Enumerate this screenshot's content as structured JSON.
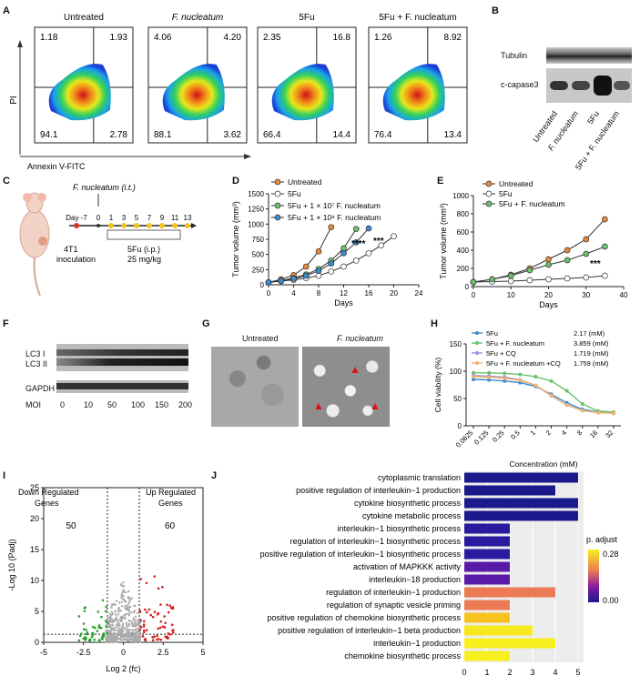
{
  "panels": {
    "A": "A",
    "B": "B",
    "C": "C",
    "D": "D",
    "E": "E",
    "F": "F",
    "G": "G",
    "H": "H",
    "I": "I",
    "J": "J"
  },
  "flow": {
    "ylabel": "PI",
    "xlabel": "Annexin V-FITC",
    "plots": [
      {
        "title": "Untreated",
        "q": [
          "1.18",
          "1.93",
          "94.1",
          "2.78"
        ]
      },
      {
        "title": "F. nucleatum",
        "q": [
          "4.06",
          "4.20",
          "88.1",
          "3.62"
        ]
      },
      {
        "title": "5Fu",
        "q": [
          "2.35",
          "16.8",
          "66.4",
          "14.4"
        ]
      },
      {
        "title": "5Fu + F. nucleatum",
        "q": [
          "1.26",
          "8.92",
          "76.4",
          "13.4"
        ]
      }
    ]
  },
  "blotB": {
    "rows": [
      "Tubulin",
      "c-capase3"
    ],
    "lanes": [
      "Untreated",
      "F. nucleatum",
      "5Fu",
      "5Fu + F. nucleatum"
    ]
  },
  "schemeC": {
    "injection": "F. nucleatum (i.t.)",
    "ticks": [
      "Day -7",
      "0",
      "1",
      "3",
      "5",
      "7",
      "9",
      "11",
      "13"
    ],
    "inoc1": "4T1",
    "inoc2": "inoculation",
    "drug1": "5Fu (i.p.)",
    "drug2": "25 mg/kg"
  },
  "blotF": {
    "rows": [
      "LC3 I",
      "LC3 II",
      "GAPDH"
    ],
    "mlabel": "MOI",
    "moi": [
      "0",
      "10",
      "50",
      "100",
      "150",
      "200"
    ]
  },
  "emG": {
    "labels": [
      "Untreated",
      "F. nucleatum"
    ]
  },
  "chart_data": [
    {
      "panel": "D",
      "type": "line",
      "xlabel": "Days",
      "ylabel": "Tumor volume (mm³)",
      "xlim": [
        0,
        24
      ],
      "ylim": [
        0,
        1500
      ],
      "xticks": [
        "0",
        "4",
        "8",
        "12",
        "16",
        "20",
        "24"
      ],
      "yticks": [
        "0",
        "250",
        "500",
        "750",
        "1000",
        "1250",
        "1500"
      ],
      "annotations": [
        "****",
        "***"
      ],
      "series": [
        {
          "name": "Untreated",
          "color": "#e8893a",
          "x": [
            0,
            2,
            4,
            6,
            8,
            10
          ],
          "y": [
            40,
            90,
            160,
            300,
            550,
            950
          ]
        },
        {
          "name": "5Fu",
          "color": "#ffffff",
          "x": [
            0,
            2,
            4,
            6,
            8,
            10,
            12,
            14,
            16,
            18,
            20
          ],
          "y": [
            40,
            60,
            80,
            110,
            150,
            220,
            300,
            400,
            520,
            650,
            800
          ]
        },
        {
          "name": "5Fu + 1 × 10⁷ F. nucleatum",
          "color": "#6cc16c",
          "x": [
            0,
            2,
            4,
            6,
            8,
            10,
            12,
            14
          ],
          "y": [
            40,
            70,
            110,
            170,
            260,
            400,
            600,
            920
          ]
        },
        {
          "name": "5Fu + 1 × 10⁸ F. nucleatum",
          "color": "#3a8bd0",
          "x": [
            0,
            2,
            4,
            6,
            8,
            10,
            12,
            14,
            16
          ],
          "y": [
            40,
            65,
            100,
            150,
            230,
            350,
            520,
            700,
            930
          ]
        }
      ]
    },
    {
      "panel": "E",
      "type": "line",
      "xlabel": "Days",
      "ylabel": "Tumor volume (mm³)",
      "xlim": [
        0,
        40
      ],
      "ylim": [
        0,
        1000
      ],
      "xticks": [
        "0",
        "10",
        "20",
        "30",
        "40"
      ],
      "yticks": [
        "0",
        "200",
        "400",
        "600",
        "800",
        "1000"
      ],
      "annotations": [
        "***"
      ],
      "series": [
        {
          "name": "Untreated",
          "color": "#e8893a",
          "x": [
            0,
            5,
            10,
            15,
            20,
            25,
            30,
            35
          ],
          "y": [
            50,
            80,
            130,
            200,
            300,
            400,
            520,
            740
          ]
        },
        {
          "name": "5Fu",
          "color": "#ffffff",
          "x": [
            0,
            5,
            10,
            15,
            20,
            25,
            30,
            35
          ],
          "y": [
            50,
            55,
            60,
            70,
            80,
            90,
            100,
            120
          ]
        },
        {
          "name": "5Fu + F. nucleatum",
          "color": "#6cc16c",
          "x": [
            0,
            5,
            10,
            15,
            20,
            25,
            30,
            35
          ],
          "y": [
            50,
            80,
            120,
            180,
            240,
            290,
            360,
            440
          ]
        }
      ]
    },
    {
      "panel": "H",
      "type": "line",
      "xlabel": "Concentration (mM)",
      "ylabel": "Cell viability (%)",
      "ylim": [
        0,
        150
      ],
      "xticks": [
        "0.0625",
        "0.125",
        "0.25",
        "0.5",
        "1",
        "2",
        "4",
        "8",
        "16",
        "32"
      ],
      "yticks": [
        "0",
        "50",
        "100",
        "150"
      ],
      "series": [
        {
          "name": "5Fu",
          "ic50": "2.17 (mM)",
          "color": "#3a8bd0",
          "y": [
            85,
            84,
            82,
            79,
            72,
            58,
            42,
            30,
            25,
            24
          ]
        },
        {
          "name": "5Fu + F. nucleatum",
          "ic50": "3.859 (mM)",
          "color": "#6cc16c",
          "y": [
            97,
            97,
            96,
            94,
            90,
            82,
            64,
            40,
            27,
            25
          ]
        },
        {
          "name": "5Fu + CQ",
          "ic50": "1.719 (mM)",
          "color": "#9a8fd6",
          "y": [
            92,
            91,
            89,
            84,
            74,
            55,
            38,
            28,
            24,
            23
          ]
        },
        {
          "name": "5Fu + F. nucleatum +CQ",
          "ic50": "1.759 (mM)",
          "color": "#f2b36b",
          "y": [
            90,
            89,
            87,
            83,
            74,
            56,
            38,
            28,
            24,
            23
          ]
        }
      ]
    },
    {
      "panel": "I",
      "type": "scatter",
      "xlabel": "Log 2 (fc)",
      "ylabel": "-Log 10 (Padj)",
      "xlim": [
        -5,
        5
      ],
      "ylim": [
        0,
        25
      ],
      "xticks": [
        "-5",
        "-2.5",
        "0",
        "2.5",
        "5"
      ],
      "yticks": [
        "0",
        "5",
        "10",
        "15",
        "20",
        "25"
      ],
      "down_label": [
        "Down Regulated",
        "Genes"
      ],
      "up_label": [
        "Up Regulated",
        "Genes"
      ],
      "down_count": "50",
      "up_count": "60"
    },
    {
      "panel": "J",
      "type": "bar",
      "xlim": [
        0,
        5
      ],
      "xticks": [
        "0",
        "1",
        "2",
        "3",
        "4",
        "5"
      ],
      "legend_title": "p. adjust",
      "legend_ticks": [
        "0.28",
        "0.00"
      ],
      "categories": [
        "cytoplasmic translation",
        "positive regulation of interleukin−1 production",
        "cytokine biosynthetic process",
        "cytokine metabolic process",
        "interleukin−1 biosynthetic process",
        "regulation of interleukin−1 biosynthetic process",
        "positive regulation of interleukin−1 biosynthetic process",
        "activation of MAPKKK activity",
        "interleukin−18 production",
        "regulation of interleukin−1 production",
        "regulation of synaptic vesicle priming",
        "positive regulation of chemokine biosynthetic process",
        "positive regulation of interleukin−1 beta production",
        "interleukin−1 production",
        "chemokine biosynthetic process"
      ],
      "values": [
        5,
        4,
        5,
        5,
        2,
        2,
        2,
        2,
        2,
        4,
        2,
        2,
        3,
        4,
        2
      ],
      "colors": [
        "#1a1a8c",
        "#1a1a8c",
        "#1a1a8c",
        "#1a1a8c",
        "#2a1aa0",
        "#2a1aa0",
        "#2a1aa0",
        "#5a1aa8",
        "#5a1aa8",
        "#ec7a55",
        "#ec7a55",
        "#f7c21e",
        "#f7e81e",
        "#f7f01e",
        "#f7f01e"
      ]
    }
  ]
}
